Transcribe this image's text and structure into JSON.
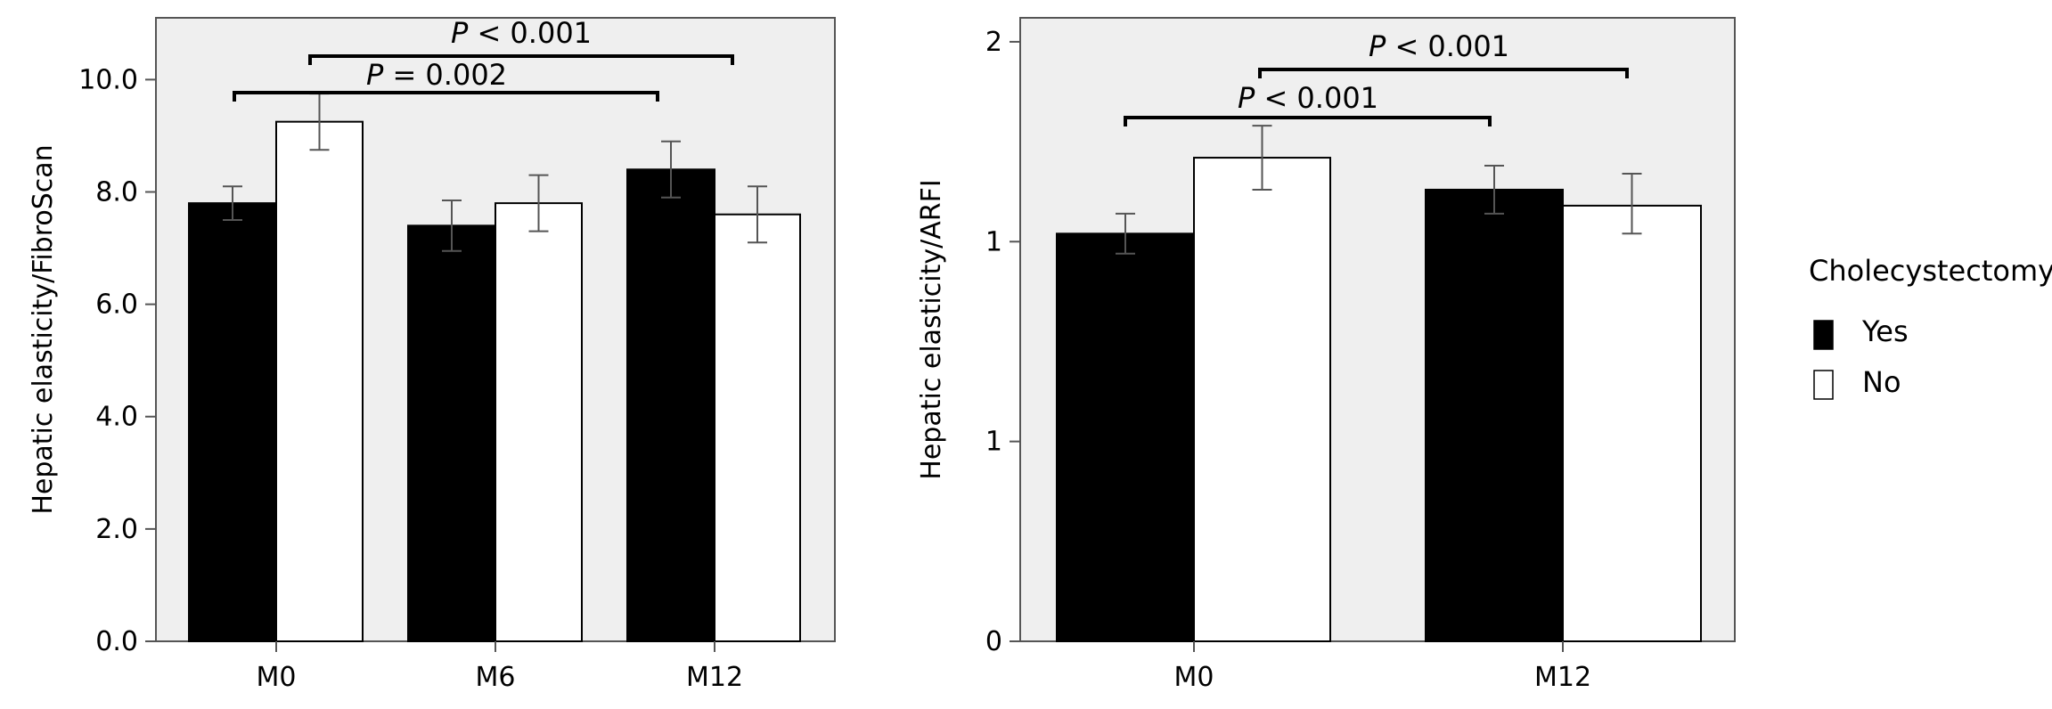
{
  "chart_data": [
    {
      "type": "bar",
      "categories": [
        "M0",
        "M6",
        "M12"
      ],
      "series": [
        {
          "name": "Yes",
          "values": [
            7.8,
            7.4,
            8.4
          ],
          "err_low": [
            7.5,
            6.95,
            7.9
          ],
          "err_high": [
            8.1,
            7.85,
            8.9
          ],
          "color": "#000000"
        },
        {
          "name": "No",
          "values": [
            9.25,
            7.8,
            7.6
          ],
          "err_low": [
            8.75,
            7.3,
            7.1
          ],
          "err_high": [
            9.75,
            8.3,
            8.1
          ],
          "color": "#ffffff"
        }
      ],
      "xlabel": "",
      "ylabel": "Hepatic elasticity/FibroScan",
      "ylim": [
        0,
        11.1
      ],
      "yticks": [
        0,
        2,
        4,
        6,
        8,
        10
      ],
      "ytick_labels": [
        "0.0",
        "2.0",
        "4.0",
        "6.0",
        "8.0",
        "10.0"
      ],
      "annotations": [
        {
          "label": "P < 0.001",
          "from": "M0 No",
          "to": "M12 No"
        },
        {
          "label": "P = 0.002",
          "from": "M0 Yes",
          "to": "M12 Yes"
        }
      ]
    },
    {
      "type": "bar",
      "categories": [
        "M0",
        "M12"
      ],
      "series": [
        {
          "name": "Yes",
          "values": [
            1.02,
            1.13
          ],
          "err_low": [
            0.97,
            1.07
          ],
          "err_high": [
            1.07,
            1.19
          ],
          "color": "#000000"
        },
        {
          "name": "No",
          "values": [
            1.21,
            1.09
          ],
          "err_low": [
            1.13,
            1.02
          ],
          "err_high": [
            1.29,
            1.17
          ],
          "color": "#ffffff"
        }
      ],
      "xlabel": "",
      "ylabel": "Hepatic elasticity/ARFI",
      "ylim": [
        0,
        1.56
      ],
      "yticks": [
        0,
        0.5,
        1,
        1.5
      ],
      "ytick_labels": [
        "0",
        "1",
        "1",
        "2"
      ],
      "annotations": [
        {
          "label": "P < 0.001",
          "from": "M0 No",
          "to": "M12 No"
        },
        {
          "label": "P < 0.001",
          "from": "M0 Yes",
          "to": "M12 Yes"
        }
      ]
    }
  ],
  "legend": {
    "title": "Cholecystectomy",
    "items": [
      {
        "label": "Yes",
        "color": "#000000"
      },
      {
        "label": "No",
        "color": "#ffffff"
      }
    ]
  },
  "plot_background": "#efefef"
}
